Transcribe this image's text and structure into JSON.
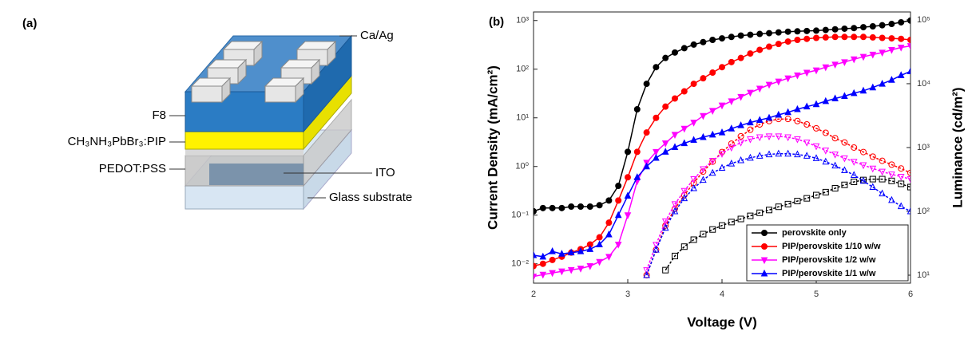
{
  "diagram": {
    "panel_label": "(a)",
    "labels": [
      "Ca/Ag",
      "F8",
      "CH₃NH₃PbBr₃:PIP",
      "PEDOT:PSS",
      "ITO",
      "Glass substrate"
    ]
  },
  "chart_data": {
    "type": "line",
    "panel_label": "(b)",
    "x_label": "Voltage (V)",
    "y_label": "Current Density (mA/cm²)",
    "y2_label": "Luminance (cd/m²)",
    "xlim": [
      2,
      6
    ],
    "xticks": [
      2,
      3,
      4,
      5,
      6
    ],
    "ylim": [
      0.004,
      1500
    ],
    "y_scale": "log",
    "yticks": [
      {
        "value": 0.01,
        "label": "10⁻²"
      },
      {
        "value": 0.1,
        "label": "10⁻¹"
      },
      {
        "value": 1,
        "label": "10⁰"
      },
      {
        "value": 10,
        "label": "10¹"
      },
      {
        "value": 100,
        "label": "10²"
      },
      {
        "value": 1000,
        "label": "10³"
      }
    ],
    "y2lim": [
      7.5,
      133000
    ],
    "y2_scale": "log",
    "y2ticks": [
      {
        "value": 10,
        "label": "10¹"
      },
      {
        "value": 100,
        "label": "10²"
      },
      {
        "value": 1000,
        "label": "10³"
      },
      {
        "value": 10000,
        "label": "10⁴"
      },
      {
        "value": 100000,
        "label": "10⁵"
      }
    ],
    "legend": "lower right",
    "x": [
      2.0,
      2.1,
      2.2,
      2.3,
      2.4,
      2.5,
      2.6,
      2.7,
      2.8,
      2.9,
      3.0,
      3.1,
      3.2,
      3.3,
      3.4,
      3.5,
      3.6,
      3.7,
      3.8,
      3.9,
      4.0,
      4.1,
      4.2,
      4.3,
      4.4,
      4.5,
      4.6,
      4.7,
      4.8,
      4.9,
      5.0,
      5.1,
      5.2,
      5.3,
      5.4,
      5.5,
      5.6,
      5.7,
      5.8,
      5.9,
      6.0
    ],
    "series": [
      {
        "name": "perovskite only",
        "color": "#000000",
        "marker": "circle",
        "luminance_marker": "square",
        "values": [
          0.12,
          0.14,
          0.14,
          0.14,
          0.15,
          0.15,
          0.15,
          0.16,
          0.2,
          0.4,
          2,
          15,
          50,
          110,
          170,
          220,
          270,
          320,
          360,
          400,
          430,
          460,
          490,
          510,
          530,
          550,
          570,
          590,
          600,
          610,
          620,
          640,
          660,
          680,
          700,
          730,
          760,
          800,
          850,
          920,
          1000
        ],
        "luminance": [
          null,
          null,
          null,
          null,
          null,
          null,
          null,
          null,
          null,
          null,
          null,
          null,
          null,
          null,
          12,
          20,
          28,
          36,
          44,
          52,
          60,
          68,
          76,
          85,
          95,
          105,
          118,
          130,
          145,
          160,
          180,
          200,
          230,
          260,
          290,
          310,
          320,
          320,
          300,
          270,
          240
        ]
      },
      {
        "name": "PIP/perovskite 1/10 w/w",
        "color": "#ff0000",
        "marker": "circle",
        "luminance_marker": "circle",
        "values": [
          0.009,
          0.01,
          0.012,
          0.014,
          0.017,
          0.02,
          0.025,
          0.035,
          0.07,
          0.2,
          0.6,
          2,
          5,
          10,
          17,
          25,
          35,
          50,
          65,
          85,
          110,
          140,
          170,
          210,
          250,
          290,
          330,
          370,
          400,
          420,
          440,
          450,
          460,
          460,
          460,
          460,
          450,
          440,
          430,
          420,
          400
        ],
        "luminance": [
          null,
          null,
          null,
          null,
          null,
          null,
          null,
          null,
          null,
          null,
          null,
          null,
          10,
          25,
          60,
          110,
          180,
          280,
          420,
          600,
          850,
          1150,
          1500,
          1900,
          2300,
          2600,
          2800,
          2800,
          2600,
          2300,
          2000,
          1700,
          1400,
          1200,
          1000,
          850,
          720,
          620,
          540,
          470,
          400
        ]
      },
      {
        "name": "PIP/perovskite 1/2 w/w",
        "color": "#ff00ff",
        "marker": "triangle-down",
        "luminance_marker": "triangle-down",
        "values": [
          0.0055,
          0.006,
          0.0065,
          0.007,
          0.0075,
          0.008,
          0.009,
          0.011,
          0.014,
          0.025,
          0.1,
          0.5,
          1.2,
          2,
          3,
          4.5,
          6,
          8,
          11,
          14,
          18,
          22,
          27,
          33,
          40,
          48,
          56,
          65,
          75,
          85,
          95,
          110,
          125,
          140,
          160,
          180,
          200,
          220,
          250,
          280,
          300
        ],
        "luminance": [
          null,
          null,
          null,
          null,
          null,
          null,
          null,
          null,
          null,
          null,
          null,
          null,
          12,
          30,
          70,
          130,
          210,
          320,
          460,
          620,
          800,
          1000,
          1200,
          1350,
          1450,
          1500,
          1500,
          1450,
          1350,
          1200,
          1050,
          900,
          780,
          680,
          600,
          530,
          470,
          420,
          380,
          350,
          320
        ]
      },
      {
        "name": "PIP/perovskite 1/1 w/w",
        "color": "#0000ff",
        "marker": "triangle-up",
        "luminance_marker": "triangle-up",
        "values": [
          0.015,
          0.014,
          0.018,
          0.016,
          0.017,
          0.018,
          0.02,
          0.025,
          0.04,
          0.1,
          0.25,
          0.6,
          1,
          1.5,
          2,
          2.5,
          3,
          3.5,
          4,
          4.5,
          5,
          6,
          7,
          8,
          9,
          10,
          11.5,
          13,
          15,
          17,
          19,
          22,
          25,
          28,
          32,
          36,
          42,
          50,
          60,
          75,
          90
        ],
        "luminance": [
          null,
          null,
          null,
          null,
          null,
          null,
          null,
          null,
          null,
          null,
          null,
          null,
          10,
          25,
          55,
          100,
          160,
          230,
          310,
          400,
          480,
          560,
          630,
          690,
          740,
          780,
          800,
          800,
          780,
          740,
          680,
          600,
          520,
          440,
          370,
          300,
          240,
          190,
          150,
          120,
          100
        ]
      }
    ]
  }
}
